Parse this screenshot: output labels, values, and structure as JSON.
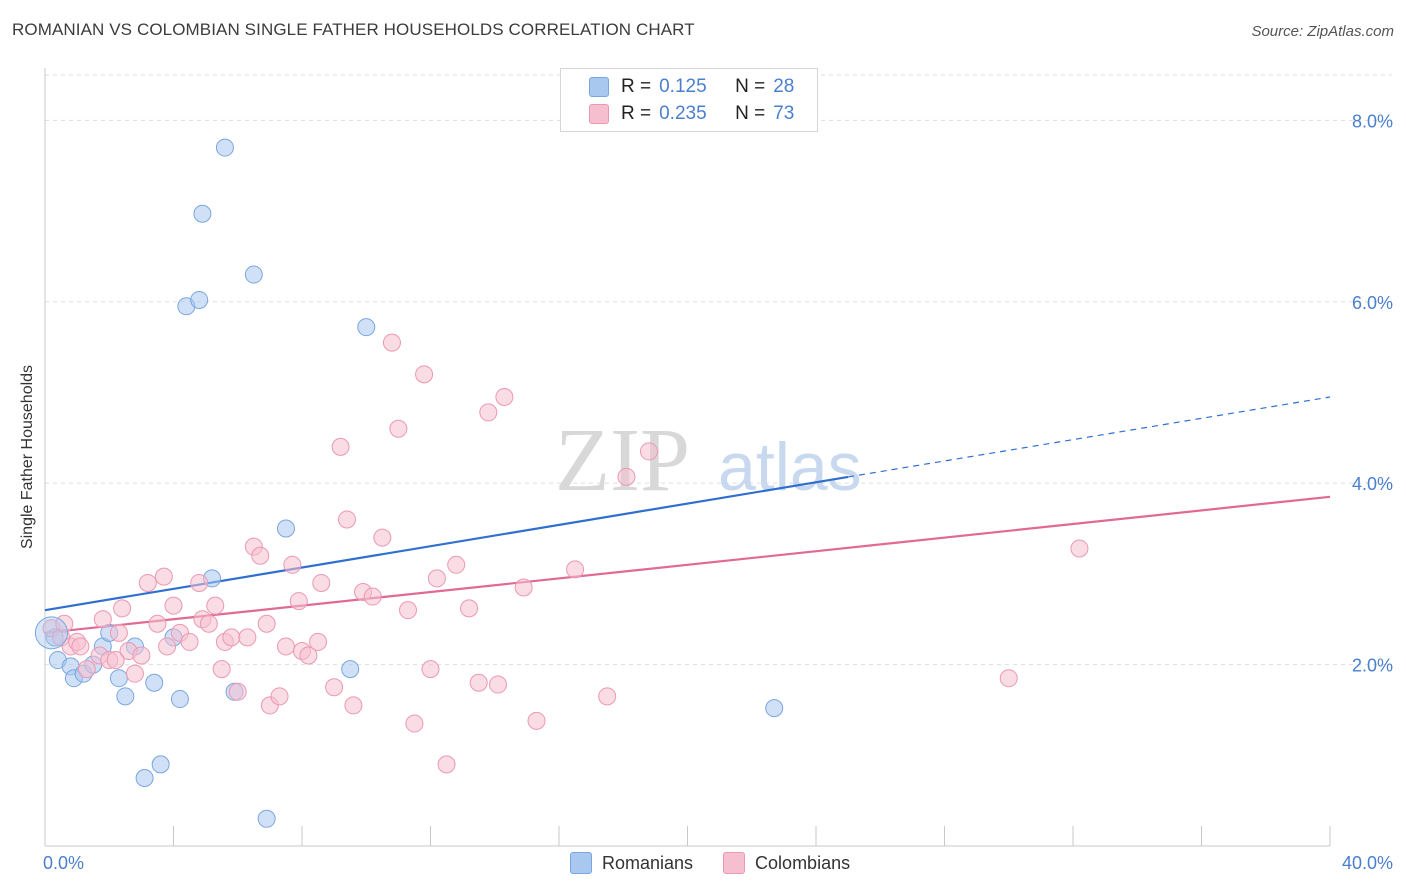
{
  "title": "ROMANIAN VS COLOMBIAN SINGLE FATHER HOUSEHOLDS CORRELATION CHART",
  "source": "Source: ZipAtlas.com",
  "watermark": {
    "zip": "ZIP",
    "atlas": "atlas"
  },
  "legend": {
    "rows": [
      {
        "r_label": "R =",
        "r_value": "0.125",
        "n_label": "N =",
        "n_value": "28",
        "color": "#a9c8f0",
        "border": "#7aa6df"
      },
      {
        "r_label": "R =",
        "r_value": "0.235",
        "n_label": "N =",
        "n_value": "73",
        "color": "#f6bfd0",
        "border": "#ec98b3"
      }
    ]
  },
  "bottom_legend": [
    {
      "label": "Romanians",
      "color": "#a9c8f0",
      "border": "#7aa6df"
    },
    {
      "label": "Colombians",
      "color": "#f6bfd0",
      "border": "#ec98b3"
    }
  ],
  "chart_data": {
    "type": "scatter",
    "title": "ROMANIAN VS COLOMBIAN SINGLE FATHER HOUSEHOLDS CORRELATION CHART",
    "xlabel": "",
    "ylabel": "Single Father Households",
    "xlim": [
      0,
      40
    ],
    "ylim": [
      0,
      8.5
    ],
    "x_tick_labels": [
      "0.0%",
      "40.0%"
    ],
    "y_ticks": [
      2,
      4,
      6,
      8
    ],
    "y_tick_labels": [
      "2.0%",
      "4.0%",
      "6.0%",
      "8.0%"
    ],
    "grid": true,
    "legend_position": "top-center",
    "series": [
      {
        "name": "Romanians",
        "color": "#7aa6df",
        "fill": "#a9c8f0",
        "line_color": "#2f6fcf",
        "trend": {
          "x0": 0,
          "y0": 2.6,
          "x1": 40,
          "y1": 4.95,
          "solid_until": 25
        },
        "points": [
          [
            0.3,
            2.3
          ],
          [
            0.4,
            2.05
          ],
          [
            0.8,
            1.98
          ],
          [
            0.9,
            1.85
          ],
          [
            1.2,
            1.9
          ],
          [
            1.5,
            2.0
          ],
          [
            1.8,
            2.2
          ],
          [
            2.0,
            2.35
          ],
          [
            2.3,
            1.85
          ],
          [
            2.5,
            1.65
          ],
          [
            2.8,
            2.2
          ],
          [
            3.1,
            0.75
          ],
          [
            3.4,
            1.8
          ],
          [
            3.6,
            0.9
          ],
          [
            4.0,
            2.3
          ],
          [
            4.2,
            1.62
          ],
          [
            4.4,
            5.95
          ],
          [
            4.8,
            6.02
          ],
          [
            4.9,
            6.97
          ],
          [
            5.2,
            2.95
          ],
          [
            5.6,
            7.7
          ],
          [
            5.9,
            1.7
          ],
          [
            6.5,
            6.3
          ],
          [
            6.9,
            0.3
          ],
          [
            7.5,
            3.5
          ],
          [
            9.5,
            1.95
          ],
          [
            10.0,
            5.72
          ],
          [
            22.7,
            1.52
          ]
        ]
      },
      {
        "name": "Colombians",
        "color": "#ec98b3",
        "fill": "#f6bfd0",
        "line_color": "#e06a94",
        "trend": {
          "x0": 0,
          "y0": 2.35,
          "x1": 40,
          "y1": 3.85,
          "solid_until": 40
        },
        "points": [
          [
            0.2,
            2.4
          ],
          [
            0.5,
            2.3
          ],
          [
            0.8,
            2.2
          ],
          [
            1.0,
            2.25
          ],
          [
            1.3,
            1.95
          ],
          [
            1.7,
            2.1
          ],
          [
            1.8,
            2.5
          ],
          [
            2.0,
            2.05
          ],
          [
            2.3,
            2.35
          ],
          [
            2.4,
            2.62
          ],
          [
            2.6,
            2.15
          ],
          [
            2.8,
            1.9
          ],
          [
            3.0,
            2.1
          ],
          [
            3.2,
            2.9
          ],
          [
            3.5,
            2.45
          ],
          [
            3.7,
            2.97
          ],
          [
            3.8,
            2.2
          ],
          [
            4.0,
            2.65
          ],
          [
            4.2,
            2.35
          ],
          [
            4.5,
            2.25
          ],
          [
            4.8,
            2.9
          ],
          [
            4.9,
            2.5
          ],
          [
            5.1,
            2.45
          ],
          [
            5.3,
            2.65
          ],
          [
            5.5,
            1.95
          ],
          [
            5.6,
            2.25
          ],
          [
            5.8,
            2.3
          ],
          [
            6.0,
            1.7
          ],
          [
            6.3,
            2.3
          ],
          [
            6.5,
            3.3
          ],
          [
            6.7,
            3.2
          ],
          [
            6.9,
            2.45
          ],
          [
            7.0,
            1.55
          ],
          [
            7.3,
            1.65
          ],
          [
            7.5,
            2.2
          ],
          [
            7.7,
            3.1
          ],
          [
            7.9,
            2.7
          ],
          [
            8.0,
            2.15
          ],
          [
            8.2,
            2.1
          ],
          [
            8.5,
            2.25
          ],
          [
            8.6,
            2.9
          ],
          [
            9.0,
            1.75
          ],
          [
            9.2,
            4.4
          ],
          [
            9.4,
            3.6
          ],
          [
            9.6,
            1.55
          ],
          [
            9.9,
            2.8
          ],
          [
            10.2,
            2.75
          ],
          [
            10.5,
            3.4
          ],
          [
            10.8,
            5.55
          ],
          [
            11.0,
            4.6
          ],
          [
            11.3,
            2.6
          ],
          [
            11.5,
            1.35
          ],
          [
            11.8,
            5.2
          ],
          [
            12.0,
            1.95
          ],
          [
            12.2,
            2.95
          ],
          [
            12.5,
            0.9
          ],
          [
            12.8,
            3.1
          ],
          [
            13.2,
            2.62
          ],
          [
            13.5,
            1.8
          ],
          [
            13.8,
            4.78
          ],
          [
            14.1,
            1.78
          ],
          [
            14.3,
            4.95
          ],
          [
            14.9,
            2.85
          ],
          [
            15.3,
            1.38
          ],
          [
            16.5,
            3.05
          ],
          [
            17.5,
            1.65
          ],
          [
            18.1,
            4.07
          ],
          [
            18.8,
            4.35
          ],
          [
            30.0,
            1.85
          ],
          [
            32.2,
            3.28
          ],
          [
            0.6,
            2.45
          ],
          [
            1.1,
            2.2
          ],
          [
            2.2,
            2.05
          ]
        ]
      }
    ]
  }
}
